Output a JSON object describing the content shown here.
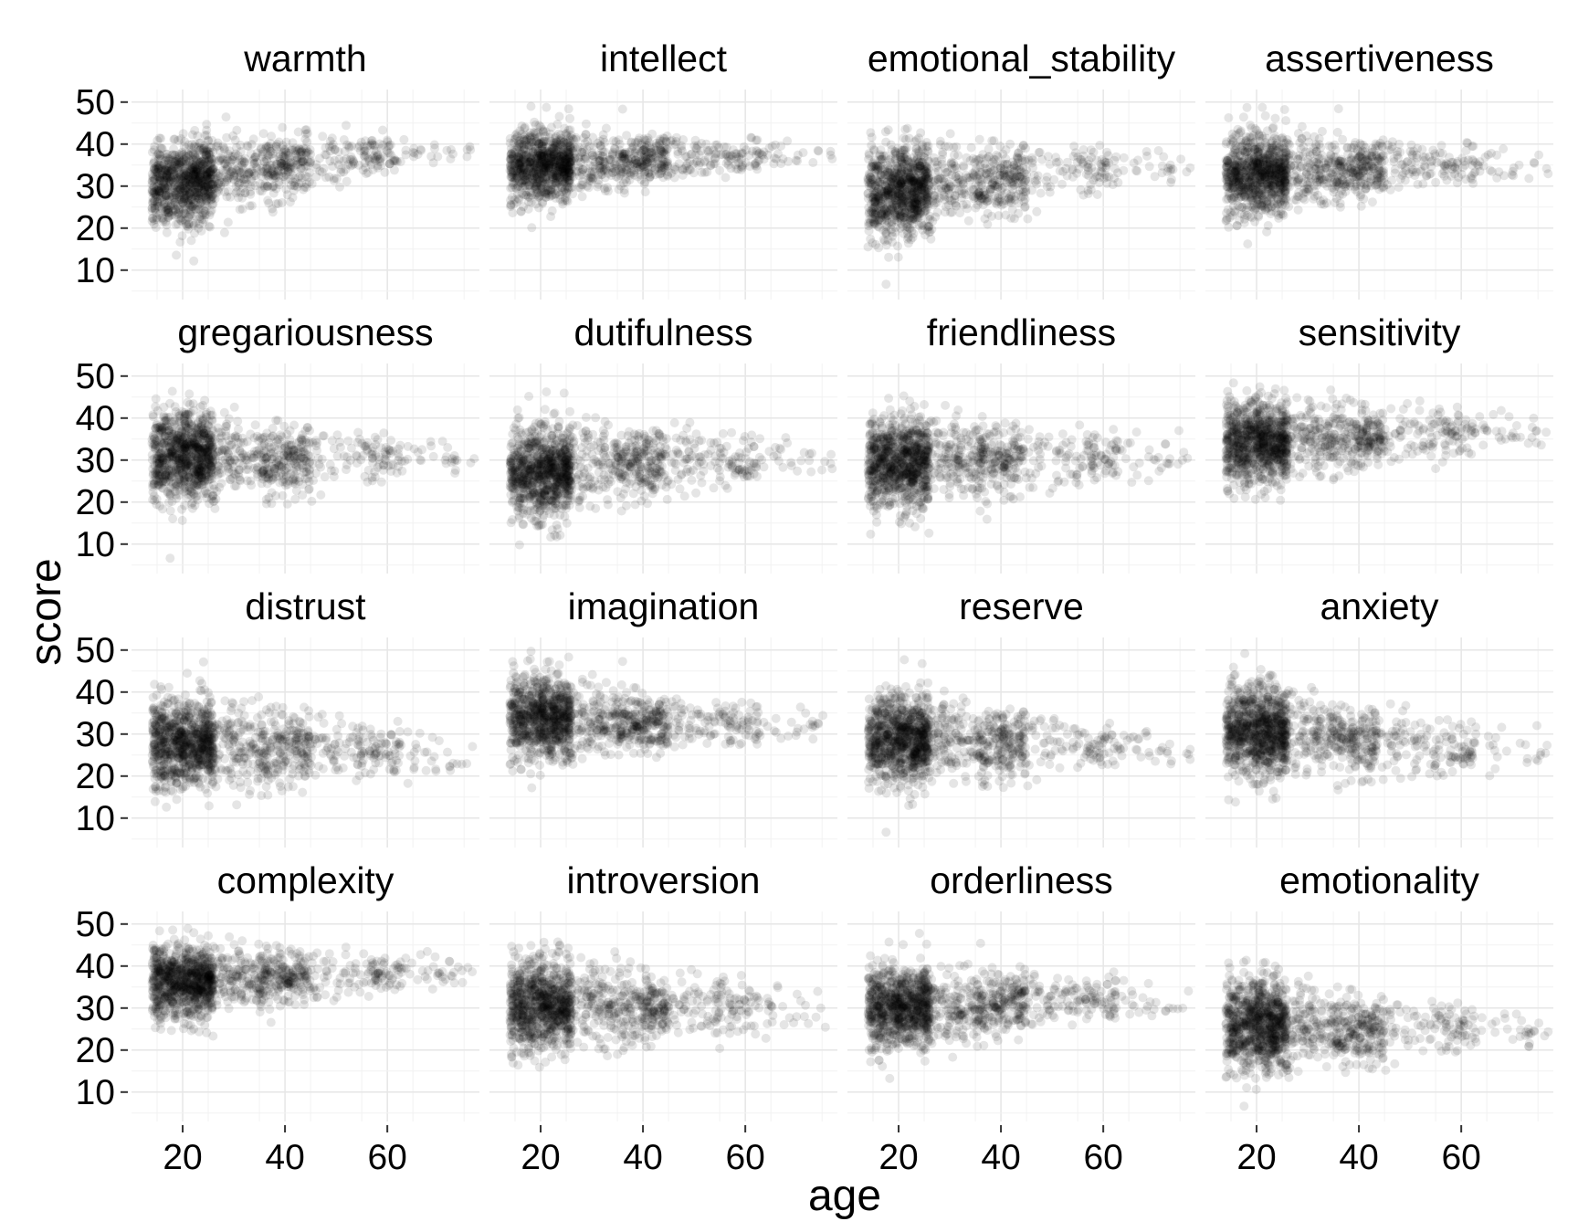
{
  "chart_data": {
    "type": "scatter",
    "layout": "facet-grid",
    "rows": 4,
    "cols": 4,
    "xlabel": "age",
    "ylabel": "score",
    "x_ticks": [
      20,
      40,
      60
    ],
    "y_ticks": [
      10,
      20,
      30,
      40,
      50
    ],
    "xlim": [
      10,
      78
    ],
    "ylim": [
      3,
      53
    ],
    "grid": true,
    "point_color": "#000000",
    "point_alpha": 0.1,
    "facets": [
      {
        "name": "warmth",
        "trend": [
          30,
          34,
          37,
          38
        ],
        "spread": [
          9,
          7,
          5,
          3
        ]
      },
      {
        "name": "intellect",
        "trend": [
          35,
          36,
          37,
          38
        ],
        "spread": [
          8,
          6,
          4,
          3
        ]
      },
      {
        "name": "emotional_stability",
        "trend": [
          28,
          31,
          33,
          34
        ],
        "spread": [
          10,
          8,
          6,
          4
        ]
      },
      {
        "name": "assertiveness",
        "trend": [
          33,
          34,
          35,
          35
        ],
        "spread": [
          9,
          7,
          5,
          4
        ]
      },
      {
        "name": "gregariousness",
        "trend": [
          31,
          30,
          30,
          30
        ],
        "spread": [
          10,
          8,
          6,
          4
        ]
      },
      {
        "name": "dutifulness",
        "trend": [
          27,
          29,
          30,
          30
        ],
        "spread": [
          10,
          8,
          6,
          4
        ]
      },
      {
        "name": "friendliness",
        "trend": [
          29,
          30,
          31,
          31
        ],
        "spread": [
          10,
          8,
          6,
          4
        ]
      },
      {
        "name": "sensitivity",
        "trend": [
          34,
          35,
          36,
          37
        ],
        "spread": [
          9,
          7,
          5,
          3
        ]
      },
      {
        "name": "distrust",
        "trend": [
          28,
          27,
          26,
          25
        ],
        "spread": [
          10,
          8,
          6,
          4
        ]
      },
      {
        "name": "imagination",
        "trend": [
          34,
          33,
          32,
          32
        ],
        "spread": [
          9,
          7,
          5,
          4
        ]
      },
      {
        "name": "reserve",
        "trend": [
          29,
          28,
          27,
          26
        ],
        "spread": [
          10,
          8,
          6,
          4
        ]
      },
      {
        "name": "anxiety",
        "trend": [
          31,
          29,
          27,
          26
        ],
        "spread": [
          10,
          8,
          6,
          4
        ]
      },
      {
        "name": "complexity",
        "trend": [
          36,
          37,
          38,
          39
        ],
        "spread": [
          8,
          6,
          4,
          3
        ]
      },
      {
        "name": "introversion",
        "trend": [
          31,
          30,
          30,
          30
        ],
        "spread": [
          10,
          8,
          6,
          4
        ]
      },
      {
        "name": "orderliness",
        "trend": [
          30,
          31,
          32,
          32
        ],
        "spread": [
          9,
          7,
          5,
          4
        ]
      },
      {
        "name": "emotionality",
        "trend": [
          26,
          25,
          25,
          24
        ],
        "spread": [
          10,
          8,
          6,
          4
        ]
      }
    ],
    "trend_ages": [
      18,
      35,
      55,
      72
    ]
  }
}
